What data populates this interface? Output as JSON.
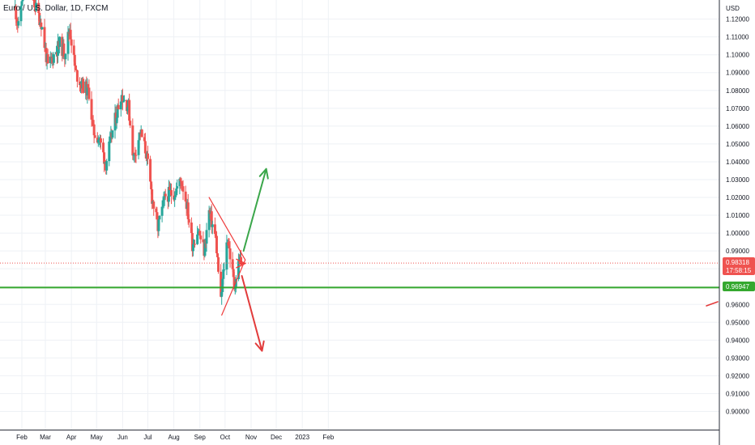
{
  "header": {
    "symbol_title": "Euro / U.S. Dollar, 1D, FXCM"
  },
  "price_axis": {
    "currency": "USD"
  },
  "colors": {
    "up_candle": "#26a69a",
    "down_candle": "#ef5350",
    "support_line": "#35a82f",
    "pattern_line": "#ef3b3b",
    "bullish_arrow": "#3aa64a",
    "bearish_arrow": "#e23b3b",
    "grid": "#eef1f5"
  },
  "markers": {
    "last_price": {
      "value": "0.98318",
      "countdown": "17:58:15"
    },
    "support": {
      "value": "0.96947"
    }
  },
  "chart_data": {
    "type": "candlestick",
    "title": "Euro / U.S. Dollar, 1D, FXCM",
    "ylabel": "USD",
    "y_ticks": [
      "0.90000",
      "0.91000",
      "0.92000",
      "0.93000",
      "0.94000",
      "0.95000",
      "0.96000",
      "0.97000",
      "0.98000",
      "0.99000",
      "1.00000",
      "1.01000",
      "1.02000",
      "1.03000",
      "1.04000",
      "1.05000",
      "1.06000",
      "1.07000",
      "1.08000",
      "1.09000",
      "1.10000",
      "1.11000",
      "1.12000"
    ],
    "x_ticks": [
      "Feb",
      "Mar",
      "Apr",
      "May",
      "Jun",
      "Jul",
      "Aug",
      "Sep",
      "Oct",
      "Nov",
      "Dec",
      "2023",
      "Feb"
    ],
    "ylim": [
      0.891,
      1.1268
    ],
    "grid": true,
    "last_price": 0.98318,
    "support_level": 0.96947,
    "close_path": [
      {
        "date": "2022-01-24",
        "close": 1.126
      },
      {
        "date": "2022-01-28",
        "close": 1.115
      },
      {
        "date": "2022-02-04",
        "close": 1.145
      },
      {
        "date": "2022-02-14",
        "close": 1.131
      },
      {
        "date": "2022-02-24",
        "close": 1.118
      },
      {
        "date": "2022-03-04",
        "close": 1.093
      },
      {
        "date": "2022-03-10",
        "close": 1.099
      },
      {
        "date": "2022-03-18",
        "close": 1.106
      },
      {
        "date": "2022-03-24",
        "close": 1.101
      },
      {
        "date": "2022-03-30",
        "close": 1.115
      },
      {
        "date": "2022-04-06",
        "close": 1.09
      },
      {
        "date": "2022-04-14",
        "close": 1.083
      },
      {
        "date": "2022-04-22",
        "close": 1.079
      },
      {
        "date": "2022-04-27",
        "close": 1.057
      },
      {
        "date": "2022-05-04",
        "close": 1.053
      },
      {
        "date": "2022-05-12",
        "close": 1.039
      },
      {
        "date": "2022-05-20",
        "close": 1.057
      },
      {
        "date": "2022-05-30",
        "close": 1.078
      },
      {
        "date": "2022-06-08",
        "close": 1.071
      },
      {
        "date": "2022-06-14",
        "close": 1.042
      },
      {
        "date": "2022-06-22",
        "close": 1.057
      },
      {
        "date": "2022-06-29",
        "close": 1.045
      },
      {
        "date": "2022-07-06",
        "close": 1.02
      },
      {
        "date": "2022-07-13",
        "close": 1.003
      },
      {
        "date": "2022-07-22",
        "close": 1.021
      },
      {
        "date": "2022-08-02",
        "close": 1.023
      },
      {
        "date": "2022-08-10",
        "close": 1.03
      },
      {
        "date": "2022-08-16",
        "close": 1.017
      },
      {
        "date": "2022-08-23",
        "close": 0.994
      },
      {
        "date": "2022-08-30",
        "close": 1.002
      },
      {
        "date": "2022-09-06",
        "close": 0.99
      },
      {
        "date": "2022-09-12",
        "close": 1.012
      },
      {
        "date": "2022-09-20",
        "close": 0.997
      },
      {
        "date": "2022-09-26",
        "close": 0.961
      },
      {
        "date": "2022-09-28",
        "close": 0.973
      },
      {
        "date": "2022-10-04",
        "close": 0.998
      },
      {
        "date": "2022-10-12",
        "close": 0.97
      },
      {
        "date": "2022-10-18",
        "close": 0.986
      },
      {
        "date": "2022-10-20",
        "close": 0.983
      }
    ],
    "annotations": {
      "triangle_upper_line": [
        [
          "2022-09-12",
          1.02
        ],
        [
          "2022-10-25",
          0.985
        ]
      ],
      "triangle_lower_line": [
        [
          "2022-09-27",
          0.954
        ],
        [
          "2022-10-25",
          0.985
        ]
      ],
      "arrow_to_triangle": [
        [
          "2022-10-19",
          0.983
        ],
        [
          "2022-10-25",
          0.983
        ]
      ],
      "bullish_arrow": [
        [
          "2022-10-23",
          0.99
        ],
        [
          "2022-11-19",
          1.036
        ]
      ],
      "bearish_arrow": [
        [
          "2022-10-21",
          0.976
        ],
        [
          "2022-11-14",
          0.934
        ]
      ]
    }
  }
}
